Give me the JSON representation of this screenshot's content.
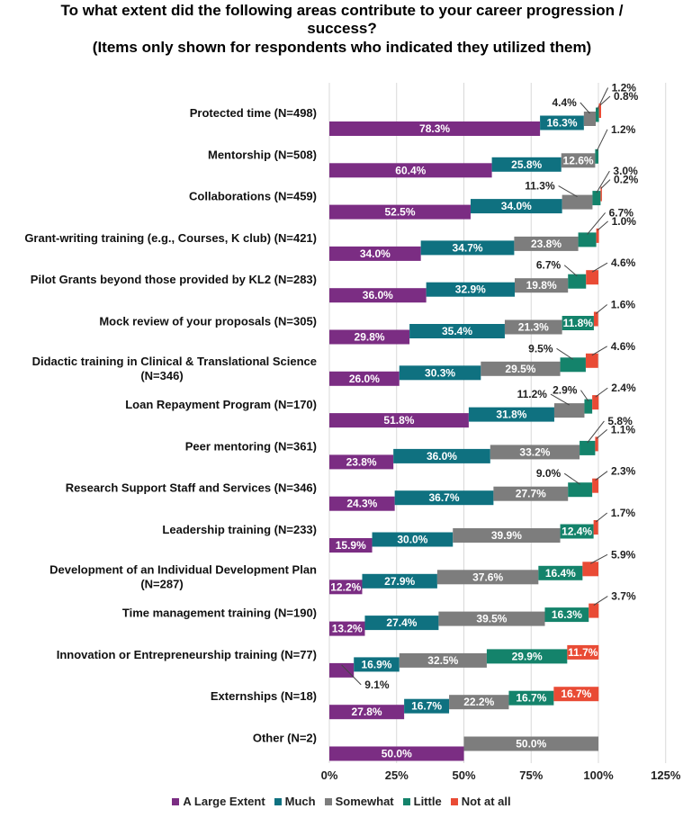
{
  "chart_data": {
    "type": "bar",
    "stacked": true,
    "orientation": "horizontal",
    "title": "To what extent did the following areas contribute to your career progression / success?",
    "subtitle": "(Items only shown for respondents who indicated they utilized them)",
    "xlim": [
      0,
      125
    ],
    "xticks": [
      "0%",
      "25%",
      "50%",
      "75%",
      "100%",
      "125%"
    ],
    "colors": {
      "A Large Extent": "#7b2d83",
      "Much": "#0f7180",
      "Somewhat": "#7d7d7d",
      "Little": "#14836b",
      "Not at all": "#e94b35"
    },
    "series_names": [
      "A Large Extent",
      "Much",
      "Somewhat",
      "Little",
      "Not at all"
    ],
    "categories": [
      {
        "label": [
          "Protected time (N=498)"
        ],
        "values": [
          78.3,
          16.3,
          4.4,
          1.2,
          0.8
        ],
        "labels": [
          "78.3%",
          "16.3%",
          "4.4%",
          "1.2%",
          "0.8%"
        ]
      },
      {
        "label": [
          "Mentorship (N=508)"
        ],
        "values": [
          60.4,
          25.8,
          12.6,
          1.2,
          0
        ],
        "labels": [
          "60.4%",
          "25.8%",
          "12.6%",
          "1.2%",
          ""
        ]
      },
      {
        "label": [
          "Collaborations (N=459)"
        ],
        "values": [
          52.5,
          34.0,
          11.3,
          3.0,
          0.2
        ],
        "labels": [
          "52.5%",
          "34.0%",
          "11.3%",
          "3.0%",
          "0.2%"
        ]
      },
      {
        "label": [
          "Grant-writing training (e.g., Courses, K club) (N=421)"
        ],
        "values": [
          34.0,
          34.7,
          23.8,
          6.7,
          1.0
        ],
        "labels": [
          "34.0%",
          "34.7%",
          "23.8%",
          "6.7%",
          "1.0%"
        ]
      },
      {
        "label": [
          "Pilot Grants beyond those provided by KL2 (N=283)"
        ],
        "values": [
          36.0,
          32.9,
          19.8,
          6.7,
          4.6
        ],
        "labels": [
          "36.0%",
          "32.9%",
          "19.8%",
          "6.7%",
          "4.6%"
        ]
      },
      {
        "label": [
          "Mock review of your proposals (N=305)"
        ],
        "values": [
          29.8,
          35.4,
          21.3,
          11.8,
          1.6
        ],
        "labels": [
          "29.8%",
          "35.4%",
          "21.3%",
          "11.8%",
          "1.6%"
        ]
      },
      {
        "label": [
          "Didactic training in Clinical & Translational Science",
          "(N=346)"
        ],
        "values": [
          26.0,
          30.3,
          29.5,
          9.5,
          4.6
        ],
        "labels": [
          "26.0%",
          "30.3%",
          "29.5%",
          "9.5%",
          "4.6%"
        ]
      },
      {
        "label": [
          "Loan Repayment Program (N=170)"
        ],
        "values": [
          51.8,
          31.8,
          11.2,
          2.9,
          2.4
        ],
        "labels": [
          "51.8%",
          "31.8%",
          "11.2%",
          "2.9%",
          "2.4%"
        ]
      },
      {
        "label": [
          "Peer mentoring (N=361)"
        ],
        "values": [
          23.8,
          36.0,
          33.2,
          5.8,
          1.1
        ],
        "labels": [
          "23.8%",
          "36.0%",
          "33.2%",
          "5.8%",
          "1.1%"
        ]
      },
      {
        "label": [
          "Research Support Staff and Services (N=346)"
        ],
        "values": [
          24.3,
          36.7,
          27.7,
          9.0,
          2.3
        ],
        "labels": [
          "24.3%",
          "36.7%",
          "27.7%",
          "9.0%",
          "2.3%"
        ]
      },
      {
        "label": [
          "Leadership training (N=233)"
        ],
        "values": [
          15.9,
          30.0,
          39.9,
          12.4,
          1.7
        ],
        "labels": [
          "15.9%",
          "30.0%",
          "39.9%",
          "12.4%",
          "1.7%"
        ]
      },
      {
        "label": [
          "Development of an Individual Development Plan",
          "(N=287)"
        ],
        "values": [
          12.2,
          27.9,
          37.6,
          16.4,
          5.9
        ],
        "labels": [
          "12.2%",
          "27.9%",
          "37.6%",
          "16.4%",
          "5.9%"
        ]
      },
      {
        "label": [
          "Time management training (N=190)"
        ],
        "values": [
          13.2,
          27.4,
          39.5,
          16.3,
          3.7
        ],
        "labels": [
          "13.2%",
          "27.4%",
          "39.5%",
          "16.3%",
          "3.7%"
        ]
      },
      {
        "label": [
          "Innovation or Entrepreneurship training (N=77)"
        ],
        "values": [
          9.1,
          16.9,
          32.5,
          29.9,
          11.7
        ],
        "labels": [
          "9.1%",
          "16.9%",
          "32.5%",
          "29.9%",
          "11.7%"
        ]
      },
      {
        "label": [
          "Externships (N=18)"
        ],
        "values": [
          27.8,
          16.7,
          22.2,
          16.7,
          16.7
        ],
        "labels": [
          "27.8%",
          "16.7%",
          "22.2%",
          "16.7%",
          "16.7%"
        ]
      },
      {
        "label": [
          "Other (N=2)"
        ],
        "values": [
          50.0,
          0,
          50.0,
          0,
          0
        ],
        "labels": [
          "50.0%",
          "",
          "50.0%",
          "",
          ""
        ]
      }
    ],
    "legend_position": "bottom"
  }
}
